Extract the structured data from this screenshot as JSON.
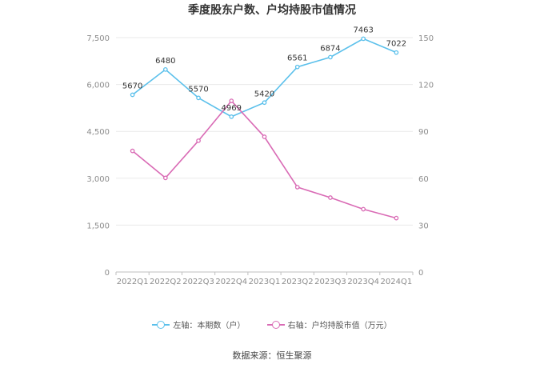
{
  "chart_data": {
    "type": "line",
    "title": "季度股东户数、户均持股市值情况",
    "categories": [
      "2022Q1",
      "2022Q2",
      "2022Q3",
      "2022Q4",
      "2023Q1",
      "2023Q2",
      "2023Q3",
      "2023Q4",
      "2024Q1"
    ],
    "left_axis": {
      "ticks": [
        "0",
        "1,500",
        "3,000",
        "4,500",
        "6,000",
        "7,500"
      ],
      "min": 0,
      "max": 7500
    },
    "right_axis": {
      "ticks": [
        "0",
        "30",
        "60",
        "90",
        "120",
        "150"
      ],
      "min": 0,
      "max": 150
    },
    "series": [
      {
        "name": "左轴：本期数（户）",
        "axis": "left",
        "color": "#5bc0eb",
        "values": [
          5670,
          6480,
          5570,
          4969,
          5420,
          6561,
          6874,
          7463,
          7022
        ],
        "labels": [
          "5670",
          "6480",
          "5570",
          "4969",
          "5420",
          "6561",
          "6874",
          "7463",
          "7022"
        ]
      },
      {
        "name": "右轴：户均持股市值（万元）",
        "axis": "right",
        "color": "#d96bb5",
        "values": [
          77.5,
          60.2,
          84,
          109.5,
          86.5,
          54.3,
          47.6,
          40.2,
          34.5
        ]
      }
    ],
    "grid": true,
    "legend_position": "bottom"
  },
  "source": "数据来源：恒生聚源"
}
